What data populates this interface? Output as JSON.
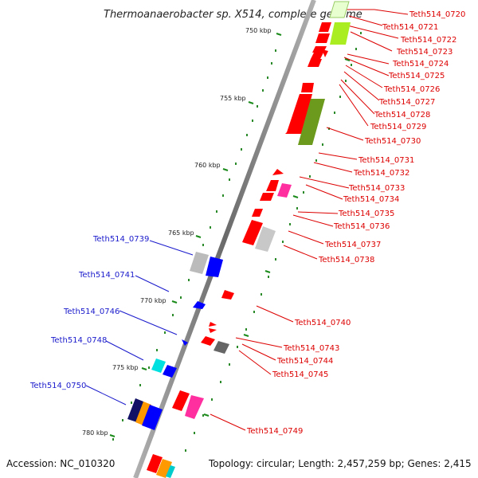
{
  "title": "Thermoanaerobacter sp. X514, complete genome",
  "footer": {
    "accession": "Accession: NC_010320",
    "topology": "Topology: circular; Length: 2,457,259 bp; Genes: 2,415"
  },
  "scale_labels": [
    "750 kbp",
    "755 kbp",
    "760 kbp",
    "765 kbp",
    "770 kbp",
    "775 kbp",
    "780 kbp"
  ],
  "genes_right": [
    "Teth514_0720",
    "Teth514_0721",
    "Teth514_0722",
    "Teth514_0723",
    "Teth514_0724",
    "Teth514_0725",
    "Teth514_0726",
    "Teth514_0727",
    "Teth514_0728",
    "Teth514_0729",
    "Teth514_0730",
    "Teth514_0731",
    "Teth514_0732",
    "Teth514_0733",
    "Teth514_0734",
    "Teth514_0735",
    "Teth514_0736",
    "Teth514_0737",
    "Teth514_0738",
    "Teth514_0740",
    "Teth514_0743",
    "Teth514_0744",
    "Teth514_0745",
    "Teth514_0749"
  ],
  "genes_left": [
    "Teth514_0739",
    "Teth514_0741",
    "Teth514_0746",
    "Teth514_0748",
    "Teth514_0750"
  ],
  "colors": {
    "forward_gene": "#ff0000",
    "reverse_gene": "#0000ff",
    "backbone": "#888888",
    "tick": "#1a8a1a",
    "label_red": "#dd0000",
    "label_blue": "#1a1acc"
  }
}
